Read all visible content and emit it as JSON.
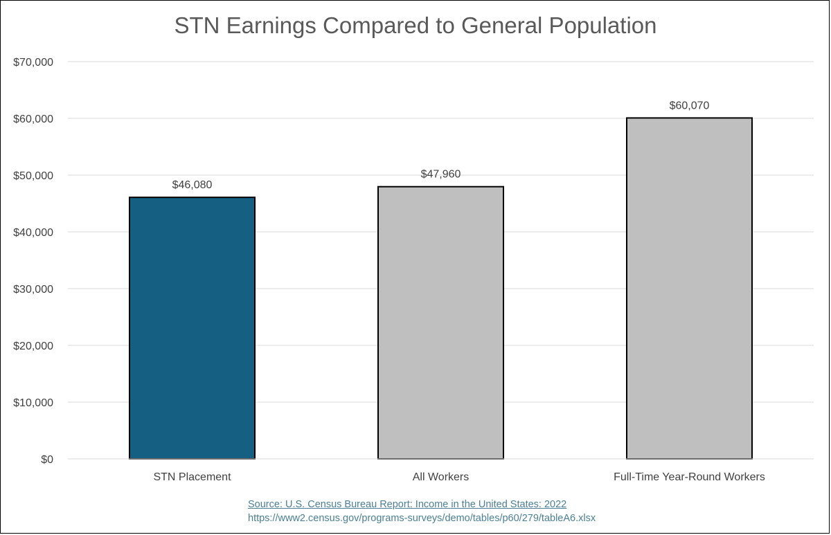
{
  "chart_data": {
    "type": "bar",
    "title": "STN Earnings Compared to General Population",
    "categories": [
      "STN Placement",
      "All Workers",
      "Full-Time Year-Round Workers"
    ],
    "values": [
      46080,
      47960,
      60070
    ],
    "data_labels": [
      "$46,080",
      "$47,960",
      "$60,070"
    ],
    "bar_colors": [
      "#156082",
      "#bfbfbf",
      "#bfbfbf"
    ],
    "ylim": [
      0,
      70000
    ],
    "yticks": [
      0,
      10000,
      20000,
      30000,
      40000,
      50000,
      60000,
      70000
    ],
    "ytick_labels": [
      "$0",
      "$10,000",
      "$20,000",
      "$30,000",
      "$40,000",
      "$50,000",
      "$60,000",
      "$70,000"
    ],
    "grid": true,
    "xlabel": "",
    "ylabel": ""
  },
  "source": {
    "line1": "Source: U.S. Census Bureau Report: Income in the United States: 2022",
    "line2": "https://www2.census.gov/programs-surveys/demo/tables/p60/279/tableA6.xlsx"
  }
}
